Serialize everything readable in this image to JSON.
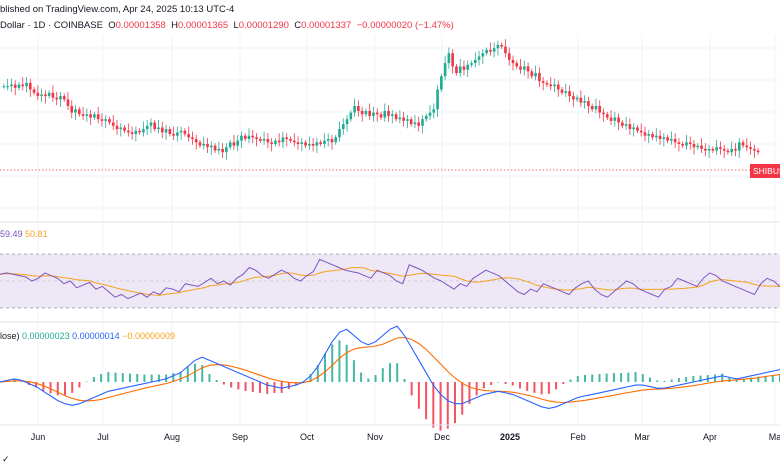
{
  "header": {
    "published": "blished on TradingView.com, Apr 24, 2025 10:13 UTC-4",
    "symbol": "Dollar · 1D · COINBASE",
    "o_label": "O",
    "o_value": "0.00001358",
    "h_label": "H",
    "h_value": "0.00001365",
    "l_label": "L",
    "l_value": "0.00001290",
    "c_label": "C",
    "c_value": "0.00001337",
    "change": "−0.00000020 (−1.47%)"
  },
  "price_tag": "SHIBUSD",
  "rsi": {
    "value": "59.49",
    "ma": "50.81"
  },
  "macd": {
    "label": "lose)",
    "hist": "0.00000023",
    "macd": "0.00000014",
    "signal": "−0.00000009"
  },
  "colors": {
    "up": "#22ab94",
    "down": "#f23645",
    "rsi": "#7e57c2",
    "rsi_ma": "#f7a21b",
    "macd": "#2962ff",
    "signal": "#ff6d00",
    "rsi_band": "#ede7f6"
  },
  "footer_logo": "✓",
  "chart_data": {
    "type": "candlestick",
    "x_labels": [
      "Jun",
      "Jul",
      "Aug",
      "Sep",
      "Oct",
      "Nov",
      "Dec",
      "2025",
      "Feb",
      "Mar",
      "Apr",
      "Ma"
    ],
    "bold_labels": [
      "2025"
    ],
    "close_series": [
      72,
      72,
      73,
      71,
      73,
      72,
      74,
      70,
      68,
      66,
      67,
      66,
      68,
      65,
      64,
      66,
      64,
      60,
      56,
      58,
      55,
      54,
      55,
      53,
      55,
      52,
      51,
      52,
      50,
      48,
      46,
      47,
      45,
      44,
      43,
      45,
      44,
      46,
      48,
      50,
      46,
      47,
      44,
      46,
      43,
      42,
      44,
      45,
      43,
      41,
      40,
      38,
      36,
      37,
      35,
      36,
      33,
      34,
      32,
      35,
      38,
      36,
      39,
      42,
      40,
      42,
      41,
      40,
      39,
      40,
      38,
      37,
      39,
      38,
      41,
      40,
      39,
      38,
      37,
      38,
      36,
      37,
      36,
      38,
      37,
      39,
      40,
      38,
      41,
      46,
      49,
      52,
      56,
      60,
      57,
      55,
      57,
      54,
      56,
      55,
      53,
      57,
      54,
      55,
      52,
      53,
      51,
      52,
      49,
      50,
      48,
      52,
      54,
      56,
      58,
      70,
      78,
      86,
      92,
      84,
      80,
      84,
      82,
      85,
      86,
      88,
      90,
      92,
      94,
      93,
      95,
      97,
      96,
      92,
      88,
      86,
      84,
      82,
      84,
      81,
      78,
      80,
      75,
      74,
      73,
      72,
      73,
      70,
      68,
      69,
      66,
      64,
      65,
      62,
      63,
      60,
      58,
      60,
      56,
      55,
      53,
      51,
      53,
      50,
      48,
      49,
      46,
      47,
      45,
      44,
      42,
      43,
      41,
      42,
      40,
      41,
      39,
      40,
      38,
      37,
      36,
      38,
      37,
      35,
      36,
      34,
      33,
      34,
      33,
      35,
      34,
      33,
      32,
      34,
      33,
      38,
      36,
      35,
      34,
      33,
      32
    ],
    "rsi_values": [
      55,
      56,
      55,
      54,
      53,
      50,
      52,
      56,
      54,
      52,
      48,
      50,
      45,
      47,
      49,
      44,
      46,
      42,
      38,
      40,
      37,
      39,
      41,
      38,
      42,
      40,
      45,
      44,
      42,
      48,
      47,
      46,
      49,
      52,
      48,
      50,
      47,
      52,
      55,
      60,
      58,
      54,
      52,
      55,
      58,
      56,
      52,
      50,
      54,
      57,
      66,
      64,
      62,
      60,
      58,
      57,
      56,
      54,
      52,
      58,
      56,
      54,
      50,
      48,
      62,
      60,
      58,
      55,
      52,
      50,
      47,
      44,
      48,
      46,
      52,
      55,
      58,
      56,
      54,
      50,
      46,
      42,
      40,
      44,
      42,
      48,
      46,
      44,
      42,
      40,
      45,
      48,
      50,
      44,
      40,
      38,
      42,
      46,
      50,
      48,
      44,
      42,
      40,
      38,
      44,
      46,
      52,
      50,
      48,
      46,
      52,
      56,
      54,
      50,
      48,
      46,
      44,
      42,
      40,
      48,
      52,
      50,
      46
    ],
    "rsi_ylim": [
      20,
      80
    ],
    "macd_line": [
      0,
      0.5,
      1,
      0.5,
      -0.5,
      -1.5,
      -3,
      -4.5,
      -6,
      -7,
      -7.5,
      -7,
      -6,
      -5,
      -4,
      -3,
      -2.5,
      -2,
      -1.5,
      -1,
      -0.5,
      0,
      0.5,
      1,
      2,
      3,
      5,
      7,
      8,
      7,
      6,
      5,
      4,
      3,
      2,
      1,
      0,
      -1,
      -1.5,
      -2,
      -1.5,
      -1,
      0,
      2,
      5,
      9,
      13,
      16,
      17,
      15,
      13,
      12,
      13,
      15,
      17,
      18,
      15,
      11,
      7,
      3,
      -1,
      -4,
      -6,
      -7,
      -7,
      -6,
      -5,
      -4,
      -3.5,
      -3,
      -3.5,
      -4,
      -5,
      -6,
      -7,
      -8,
      -8.5,
      -8,
      -7,
      -6,
      -5,
      -4.5,
      -4,
      -3.5,
      -3,
      -2.5,
      -2,
      -1.5,
      -1,
      -1,
      -1.5,
      -2,
      -2,
      -1.5,
      -1,
      -0.5,
      0,
      0.5,
      1,
      1.5,
      2,
      1.5,
      1,
      1.5,
      2,
      2.5,
      3,
      3.5,
      4
    ],
    "signal_line": [
      0,
      0.2,
      0.4,
      0.4,
      0.1,
      -0.4,
      -1.2,
      -2.2,
      -3.3,
      -4.4,
      -5.3,
      -5.9,
      -6.1,
      -6,
      -5.6,
      -5,
      -4.4,
      -3.8,
      -3.2,
      -2.6,
      -2,
      -1.5,
      -1,
      -0.5,
      0.2,
      1,
      2,
      3.3,
      4.6,
      5.4,
      5.6,
      5.5,
      5.1,
      4.5,
      3.8,
      3,
      2.2,
      1.4,
      0.7,
      0.2,
      -0.1,
      -0.3,
      -0.2,
      0.4,
      1.6,
      3.3,
      5.4,
      7.6,
      9.5,
      10.6,
      11.1,
      11.3,
      11.6,
      12.2,
      13.2,
      14.2,
      14.4,
      13.7,
      12.4,
      10.5,
      8.2,
      5.8,
      3.4,
      1.3,
      -0.4,
      -1.6,
      -2.3,
      -2.7,
      -2.9,
      -3,
      -3.1,
      -3.3,
      -3.7,
      -4.2,
      -4.8,
      -5.5,
      -6.1,
      -6.5,
      -6.6,
      -6.5,
      -6.2,
      -5.9,
      -5.5,
      -5.1,
      -4.7,
      -4.3,
      -3.8,
      -3.4,
      -3,
      -2.6,
      -2.4,
      -2.3,
      -2.2,
      -2,
      -1.8,
      -1.5,
      -1.2,
      -0.8,
      -0.4,
      0,
      0.3,
      0.5,
      0.7,
      0.9,
      1.1,
      1.4,
      1.8,
      2.1,
      2.4
    ]
  }
}
